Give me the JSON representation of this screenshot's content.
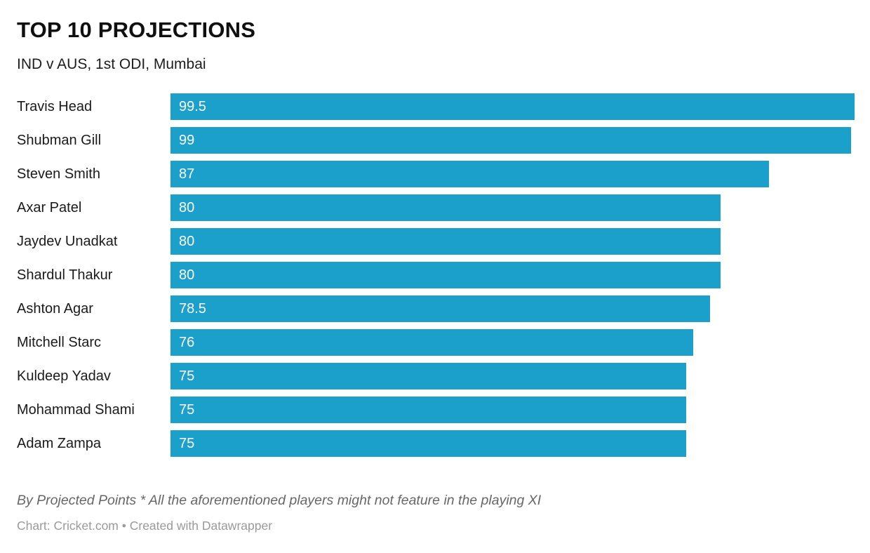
{
  "header": {
    "title": "TOP 10 PROJECTIONS",
    "subtitle": "IND v AUS, 1st ODI, Mumbai"
  },
  "chart_data": {
    "type": "bar",
    "orientation": "horizontal",
    "categories": [
      "Travis Head",
      "Shubman Gill",
      "Steven Smith",
      "Axar Patel",
      "Jaydev Unadkat",
      "Shardul Thakur",
      "Ashton Agar",
      "Mitchell Starc",
      "Kuldeep Yadav",
      "Mohammad Shami",
      "Adam Zampa"
    ],
    "values": [
      99.5,
      99,
      87,
      80,
      80,
      80,
      78.5,
      76,
      75,
      75,
      75
    ],
    "title": "TOP 10 PROJECTIONS",
    "subtitle": "IND v AUS, 1st ODI, Mumbai",
    "xlabel": "",
    "ylabel": "",
    "xlim": [
      0,
      99.5
    ],
    "value_labels": "inside-bar-start",
    "grid": false,
    "axis_visible": false,
    "bar_color": "#1ba0cc",
    "value_label_color": "#ffffff"
  },
  "footer": {
    "footnote": "By Projected Points * All the aforementioned players might not feature in the playing XI",
    "attribution": "Chart: Cricket.com • Created with Datawrapper"
  },
  "colors": {
    "bar": "#1ba0cc",
    "title": "#0f0f0f",
    "label": "#1a1a1a",
    "footnote": "#676767",
    "attribution": "#9a9a9a",
    "background": "#ffffff"
  }
}
